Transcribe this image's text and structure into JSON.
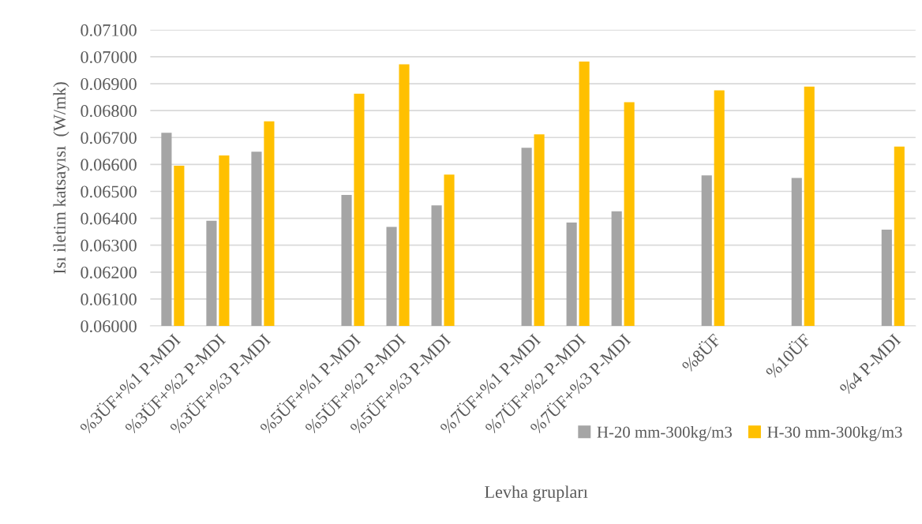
{
  "chart_data": {
    "type": "bar",
    "xlabel": "Levha grupları",
    "ylabel": "Isı iletim katsayısı  (W/mk)",
    "categories": [
      "%3ÜF+%1 P-MDI",
      "%3ÜF+%2 P-MDI",
      "%3ÜF+%3 P-MDI",
      null,
      "%5ÜF+%1 P-MDI",
      "%5ÜF+%2 P-MDI",
      "%5ÜF+%3 P-MDI",
      null,
      "%7ÜF+%1 P-MDI",
      "%7ÜF+%2 P-MDI",
      "%7ÜF+%3 P-MDI",
      null,
      "%8ÜF",
      null,
      "%10ÜF",
      null,
      "%4 P-MDI"
    ],
    "series": [
      {
        "name": "H-20 mm-300kg/m3",
        "color": "#a5a5a5",
        "values": [
          0.06718,
          0.06391,
          0.06647,
          null,
          0.06487,
          0.06368,
          0.06448,
          null,
          0.06662,
          0.06384,
          0.06426,
          null,
          0.06559,
          null,
          0.0655,
          null,
          0.06358
        ]
      },
      {
        "name": "H-30 mm-300kg/m3",
        "color": "#ffc000",
        "values": [
          0.06595,
          0.06633,
          0.0676,
          null,
          0.06863,
          0.06972,
          0.06562,
          null,
          0.06712,
          0.06982,
          0.06831,
          null,
          0.06875,
          null,
          0.06889,
          null,
          0.06666
        ]
      }
    ],
    "ylim": [
      0.06,
      0.071
    ],
    "yticks": [
      {
        "value": 0.06,
        "label": "0.06000"
      },
      {
        "value": 0.061,
        "label": "0.06100"
      },
      {
        "value": 0.062,
        "label": "0.06200"
      },
      {
        "value": 0.063,
        "label": "0.06300"
      },
      {
        "value": 0.064,
        "label": "0.06400"
      },
      {
        "value": 0.065,
        "label": "0.06500"
      },
      {
        "value": 0.066,
        "label": "0.06600"
      },
      {
        "value": 0.067,
        "label": "0.06700"
      },
      {
        "value": 0.068,
        "label": "0.06800"
      },
      {
        "value": 0.069,
        "label": "0.06900"
      },
      {
        "value": 0.07,
        "label": "0.07000"
      },
      {
        "value": 0.071,
        "label": "0.07100"
      }
    ],
    "grid": "y",
    "legend": "bottom right"
  }
}
